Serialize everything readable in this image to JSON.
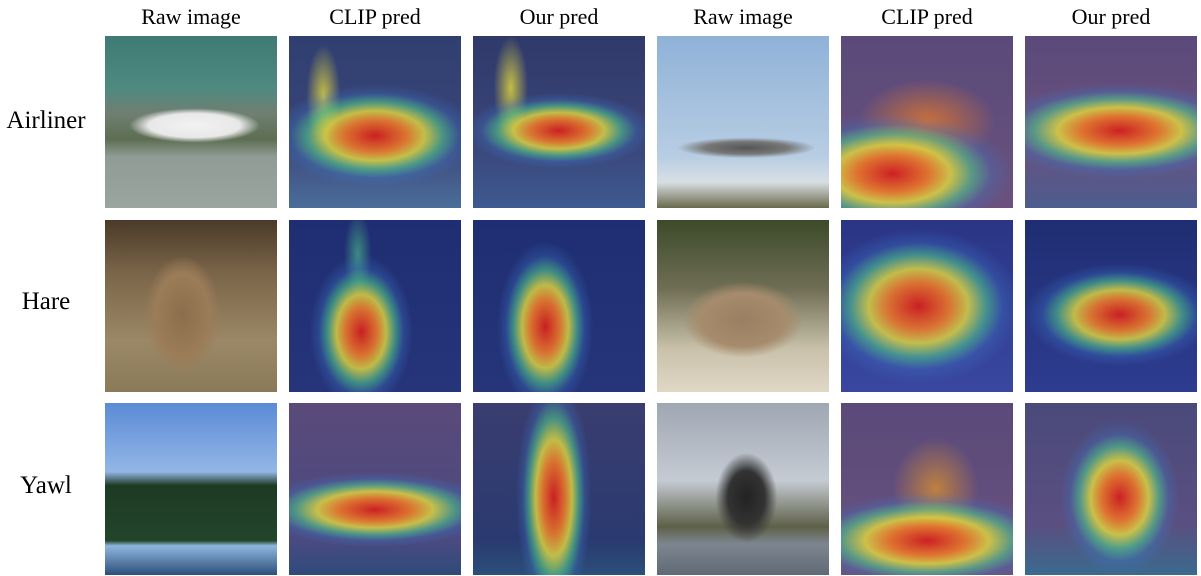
{
  "column_headers": [
    "Raw image",
    "CLIP pred",
    "Our pred",
    "Raw image",
    "CLIP pred",
    "Our pred"
  ],
  "row_labels": [
    "Airliner",
    "Hare",
    "Yawl"
  ]
}
